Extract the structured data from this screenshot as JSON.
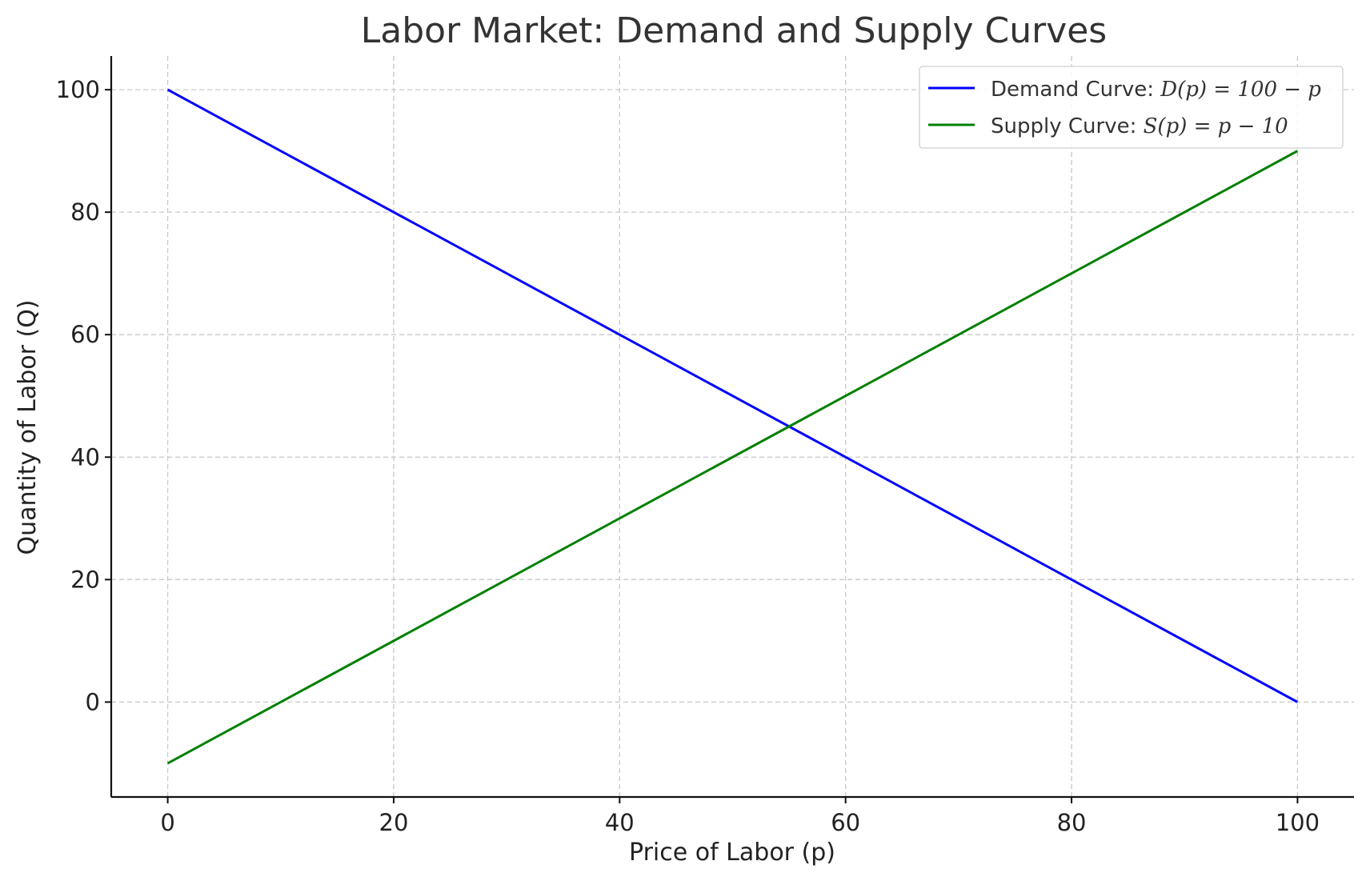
{
  "chart_data": {
    "type": "line",
    "title": "Labor Market: Demand and Supply Curves",
    "xlabel": "Price of Labor (p)",
    "ylabel": "Quantity of Labor (Q)",
    "xlim": [
      -5,
      105
    ],
    "ylim": [
      -15.5,
      105.5
    ],
    "xticks": [
      0,
      20,
      40,
      60,
      80,
      100
    ],
    "yticks": [
      0,
      20,
      40,
      60,
      80,
      100
    ],
    "grid": true,
    "legend_position": "top-right",
    "series": [
      {
        "name": "Demand Curve: D(p) = 100 − p",
        "legend_prefix": "Demand Curve: ",
        "legend_formula": "D(p) = 100 − p",
        "color": "#0000ff",
        "x": [
          0,
          100
        ],
        "y": [
          100,
          0
        ]
      },
      {
        "name": "Supply Curve: S(p) = p − 10",
        "legend_prefix": "Supply Curve: ",
        "legend_formula": "S(p) = p − 10",
        "color": "#008000",
        "x": [
          0,
          100
        ],
        "y": [
          -10,
          90
        ]
      }
    ]
  }
}
